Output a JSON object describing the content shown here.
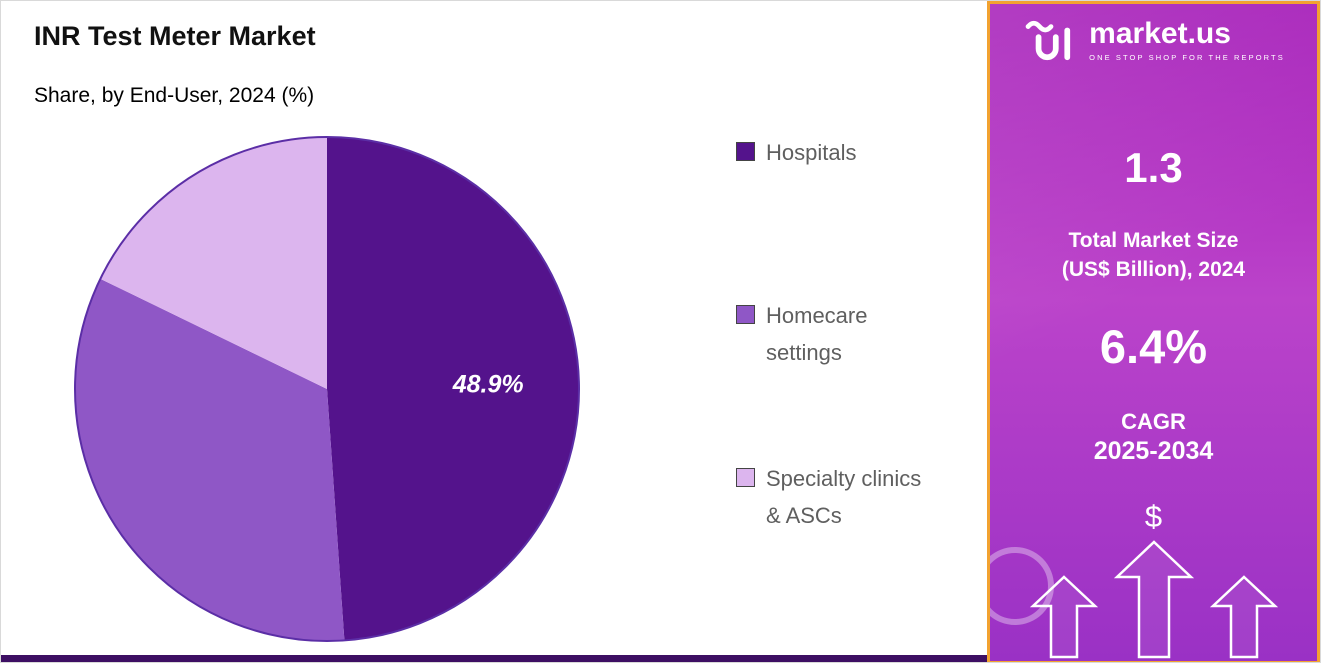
{
  "chart_data": {
    "type": "pie",
    "title": "INR Test Meter Market",
    "subtitle": "Share, by End-User, 2024 (%)",
    "labels": [
      "Hospitals",
      "Homecare settings",
      "Specialty clinics & ASCs"
    ],
    "values": [
      48.9,
      33.3,
      17.8
    ],
    "colors": [
      "#54138c",
      "#8f57c6",
      "#dcb5ee"
    ],
    "data_labels": [
      "48.9%",
      "",
      ""
    ],
    "outline_color": "#5b2ea6",
    "legend_position": "right",
    "start_angle_deg": -90,
    "direction": "clockwise"
  },
  "sidebar": {
    "logo_text": "market.us",
    "logo_tagline": "ONE STOP SHOP FOR THE REPORTS",
    "market_size_value": "1.3",
    "market_size_label_lines": [
      "Total Market Size",
      "(US$ Billion), 2024"
    ],
    "cagr_value": "6.4%",
    "cagr_label": "CAGR",
    "cagr_period": "2025-2034",
    "dollar_symbol": "$",
    "accent_border_color": "#f2a230",
    "gradient_top": "#a51cb8",
    "gradient_bottom": "#9a31c5",
    "footer_bar_color": "#3d0f63"
  }
}
